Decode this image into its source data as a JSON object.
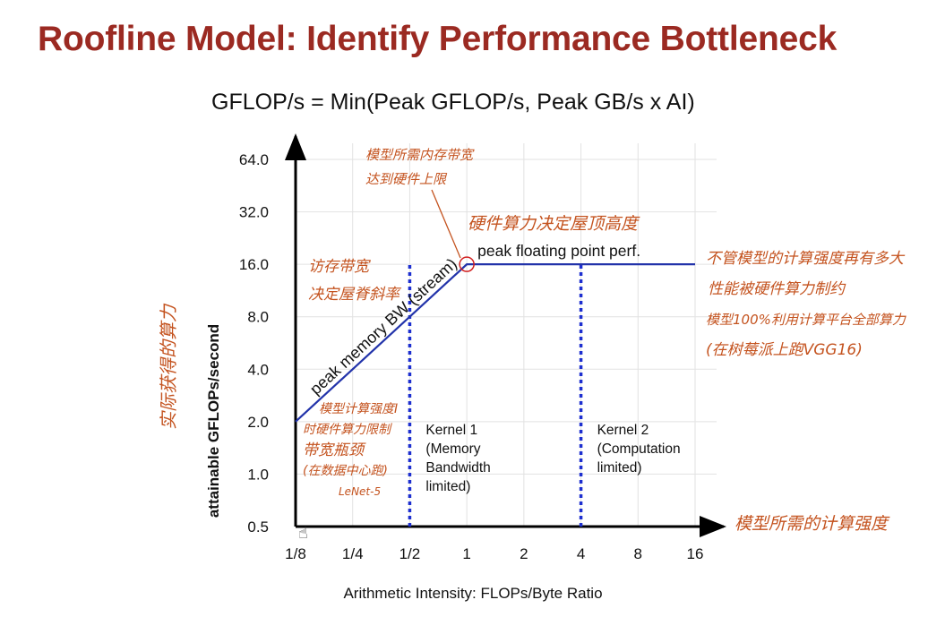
{
  "title": "Roofline Model: Identify Performance Bottleneck",
  "formula": "GFLOP/s = Min(Peak GFLOP/s, Peak GB/s x AI)",
  "chart_data": {
    "type": "line",
    "xscale": "log2",
    "yscale": "log2",
    "x_ticks": [
      {
        "value": 0.125,
        "label": "1/8"
      },
      {
        "value": 0.25,
        "label": "1/4"
      },
      {
        "value": 0.5,
        "label": "1/2"
      },
      {
        "value": 1,
        "label": "1"
      },
      {
        "value": 2,
        "label": "2"
      },
      {
        "value": 4,
        "label": "4"
      },
      {
        "value": 8,
        "label": "8"
      },
      {
        "value": 16,
        "label": "16"
      }
    ],
    "y_ticks": [
      {
        "value": 0.5,
        "label": "0.5"
      },
      {
        "value": 1,
        "label": "1.0"
      },
      {
        "value": 2,
        "label": "2.0"
      },
      {
        "value": 4,
        "label": "4.0"
      },
      {
        "value": 8,
        "label": "8.0"
      },
      {
        "value": 16,
        "label": "16.0"
      },
      {
        "value": 32,
        "label": "32.0"
      },
      {
        "value": 64,
        "label": "64.0"
      }
    ],
    "xlim": [
      0.125,
      16
    ],
    "ylim": [
      0.5,
      64
    ],
    "xlabel": "Arithmetic Intensity: FLOPs/Byte Ratio",
    "ylabel": "attainable GFLOPs/second",
    "roofline": {
      "x": [
        0.125,
        1,
        16
      ],
      "y": [
        2,
        16,
        16
      ]
    },
    "ridge_point": {
      "x": 1,
      "y": 16
    },
    "memory_label": "peak memory BW (stream)",
    "compute_label": "peak floating point  perf.",
    "kernels": [
      {
        "x": 0.5,
        "label_lines": [
          "Kernel 1",
          "(Memory",
          "Bandwidth",
          "limited)"
        ]
      },
      {
        "x": 4,
        "label_lines": [
          "Kernel 2",
          "(Computation",
          "limited)"
        ]
      }
    ],
    "colors": {
      "roof": "#2233aa",
      "kernel": "#1d2fd0",
      "circle": "#d12020",
      "annotation": "#c4531f"
    }
  },
  "annotations": {
    "top_note": [
      "模型所需内存带宽",
      "达到硬件上限"
    ],
    "ridge_note": "硬件算力决定屋顶高度",
    "slope_note": [
      "访存带宽",
      "决定屋脊斜率"
    ],
    "right_note": [
      "不管模型的计算强度再有多大",
      "性能被硬件算力制约",
      "模型100%利用计算平台全部算力",
      "(在树莓派上跑VGG16)"
    ],
    "left_low_note": [
      "模型计算强度I",
      "时硬件算力限制",
      "带宽瓶颈",
      "(在数据中心跑)",
      "LeNet-5"
    ],
    "y_axis_note": "实际获得的算力",
    "x_axis_note": "模型所需的计算强度"
  }
}
